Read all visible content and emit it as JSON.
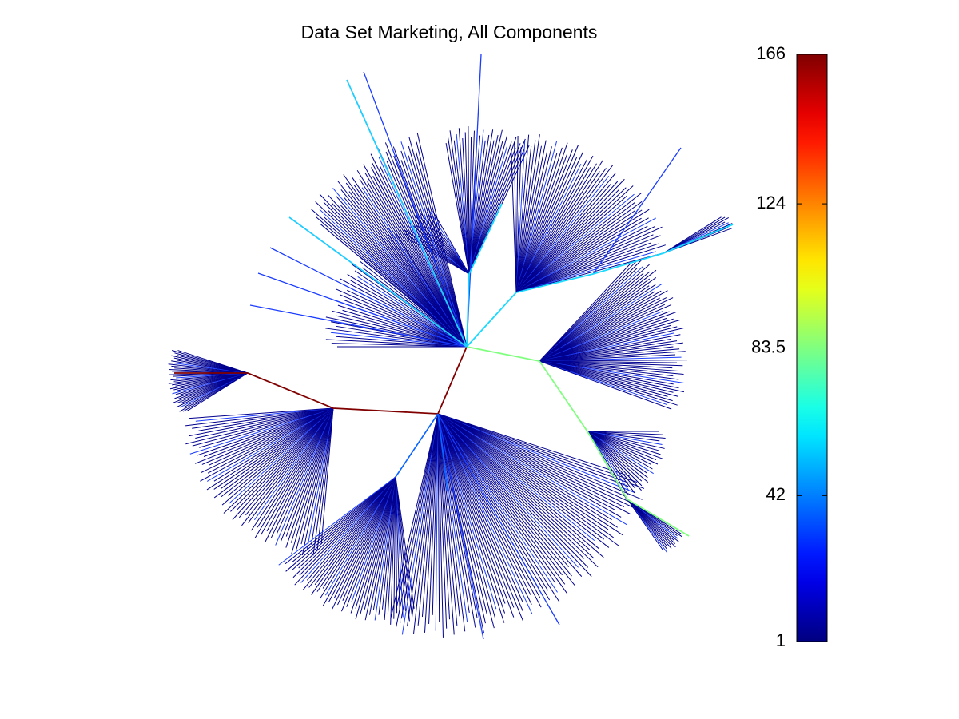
{
  "chart_data": {
    "type": "radial-tree",
    "title": "Data Set Marketing, All Components",
    "colorbar": {
      "clim": [
        1,
        166
      ],
      "ticks": [
        1,
        42,
        83.5,
        124,
        166
      ],
      "colormap": "jet"
    }
  }
}
